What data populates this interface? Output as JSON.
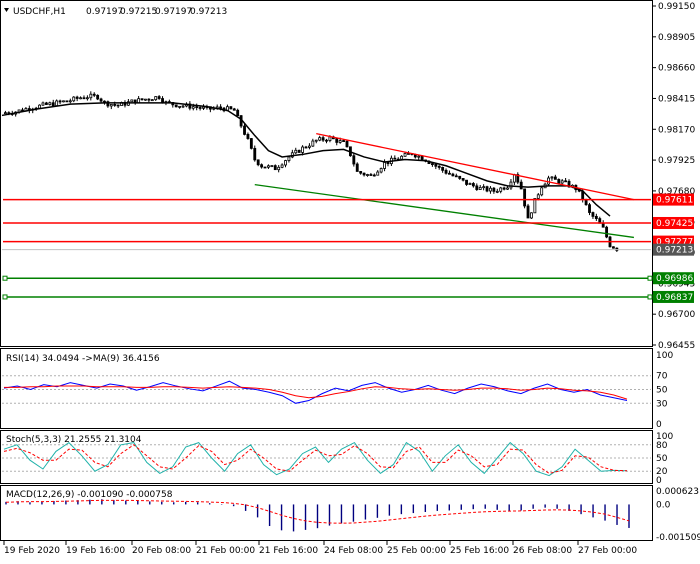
{
  "symbol_header": "USDCHF,H1",
  "ohlc_header": [
    "0.97197",
    "0.97215",
    "0.97197",
    "0.97213"
  ],
  "colors": {
    "resistance": "#ff0000",
    "support": "#008000",
    "ma_line": "#000000",
    "rsi_line": "#0000ff",
    "rsi_ma": "#ff0000",
    "stoch_main": "#20b2aa",
    "stoch_signal": "#ff0000",
    "macd_hist": "#000080",
    "macd_signal": "#ff0000",
    "current_price_tag": "#555555"
  },
  "chart_data": [
    {
      "type": "candlestick",
      "title": "USDCHF,H1",
      "y_ticks": [
        "0.99150",
        "0.98905",
        "0.98660",
        "0.98415",
        "0.98170",
        "0.97925",
        "0.97680",
        "0.97435",
        "0.97190",
        "0.96945",
        "0.96700",
        "0.96455"
      ],
      "ylim": [
        0.96455,
        0.9915
      ],
      "x_ticks": [
        "19 Feb 2020",
        "19 Feb 16:00",
        "20 Feb 08:00",
        "21 Feb 00:00",
        "21 Feb 16:00",
        "24 Feb 08:00",
        "25 Feb 00:00",
        "25 Feb 16:00",
        "26 Feb 08:00",
        "27 Feb 00:00"
      ],
      "close_path": [
        [
          0,
          0.983
        ],
        [
          4,
          0.9831
        ],
        [
          8,
          0.9834
        ],
        [
          12,
          0.9836
        ],
        [
          16,
          0.9838
        ],
        [
          20,
          0.984
        ],
        [
          24,
          0.9843
        ],
        [
          28,
          0.9843
        ],
        [
          30,
          0.9838
        ],
        [
          34,
          0.9836
        ],
        [
          38,
          0.9839
        ],
        [
          42,
          0.9841
        ],
        [
          46,
          0.9843
        ],
        [
          48,
          0.9838
        ],
        [
          52,
          0.9836
        ],
        [
          56,
          0.9835
        ],
        [
          60,
          0.9833
        ],
        [
          64,
          0.9834
        ],
        [
          68,
          0.9832
        ],
        [
          70,
          0.982
        ],
        [
          72,
          0.9808
        ],
        [
          74,
          0.9793
        ],
        [
          76,
          0.9788
        ],
        [
          80,
          0.9786
        ],
        [
          84,
          0.9795
        ],
        [
          88,
          0.9802
        ],
        [
          92,
          0.9808
        ],
        [
          96,
          0.981
        ],
        [
          100,
          0.9806
        ],
        [
          102,
          0.9797
        ],
        [
          104,
          0.9783
        ],
        [
          108,
          0.978
        ],
        [
          112,
          0.979
        ],
        [
          116,
          0.9794
        ],
        [
          120,
          0.9798
        ],
        [
          124,
          0.9793
        ],
        [
          128,
          0.9786
        ],
        [
          132,
          0.978
        ],
        [
          136,
          0.9774
        ],
        [
          140,
          0.977
        ],
        [
          144,
          0.9768
        ],
        [
          148,
          0.9772
        ],
        [
          150,
          0.9782
        ],
        [
          152,
          0.977
        ],
        [
          154,
          0.9745
        ],
        [
          156,
          0.976
        ],
        [
          158,
          0.9772
        ],
        [
          160,
          0.9778
        ],
        [
          164,
          0.9775
        ],
        [
          168,
          0.977
        ],
        [
          170,
          0.9762
        ],
        [
          172,
          0.975
        ],
        [
          174,
          0.9745
        ],
        [
          176,
          0.9738
        ],
        [
          178,
          0.9725
        ],
        [
          180,
          0.9722
        ]
      ],
      "ma_path": [
        [
          0,
          0.9828
        ],
        [
          10,
          0.9833
        ],
        [
          20,
          0.9837
        ],
        [
          30,
          0.9838
        ],
        [
          40,
          0.9838
        ],
        [
          50,
          0.9838
        ],
        [
          60,
          0.9835
        ],
        [
          66,
          0.9832
        ],
        [
          70,
          0.9825
        ],
        [
          74,
          0.9812
        ],
        [
          78,
          0.98
        ],
        [
          82,
          0.9795
        ],
        [
          88,
          0.9797
        ],
        [
          94,
          0.98
        ],
        [
          100,
          0.9801
        ],
        [
          106,
          0.9795
        ],
        [
          112,
          0.9791
        ],
        [
          118,
          0.9793
        ],
        [
          124,
          0.9792
        ],
        [
          130,
          0.9788
        ],
        [
          136,
          0.9782
        ],
        [
          142,
          0.9776
        ],
        [
          148,
          0.9772
        ],
        [
          154,
          0.9771
        ],
        [
          160,
          0.9772
        ],
        [
          166,
          0.9772
        ],
        [
          170,
          0.9768
        ],
        [
          174,
          0.9757
        ],
        [
          178,
          0.9748
        ]
      ],
      "price_lines": [
        {
          "label": "0.97611",
          "value": 0.97611,
          "role": "resistance"
        },
        {
          "label": "0.97425",
          "value": 0.97425,
          "role": "resistance"
        },
        {
          "label": "0.97277",
          "value": 0.97277,
          "role": "resistance"
        },
        {
          "label": "0.96986",
          "value": 0.96986,
          "role": "support"
        },
        {
          "label": "0.96837",
          "value": 0.96837,
          "role": "support"
        }
      ],
      "current_price": {
        "label": "0.97213",
        "value": 0.97213
      },
      "trendlines": [
        {
          "role": "resistance",
          "from": [
            92,
            0.98135
          ],
          "to": [
            185,
            0.97611
          ]
        },
        {
          "role": "support",
          "from": [
            74,
            0.9773
          ],
          "to": [
            185,
            0.9731
          ]
        }
      ]
    },
    {
      "type": "line",
      "title": "RSI(14) 34.0494 ->MA(9) 36.4156",
      "y_ticks": [
        "100",
        "70",
        "50",
        "30",
        "0"
      ],
      "ylim": [
        0,
        100
      ],
      "series": [
        {
          "role": "rsi",
          "values": [
            52,
            55,
            50,
            57,
            54,
            60,
            56,
            52,
            58,
            55,
            49,
            54,
            60,
            55,
            51,
            48,
            55,
            62,
            52,
            50,
            46,
            41,
            30,
            34,
            44,
            52,
            48,
            56,
            60,
            52,
            46,
            50,
            56,
            49,
            44,
            52,
            58,
            54,
            48,
            44,
            52,
            58,
            50,
            46,
            50,
            42,
            38,
            34
          ]
        },
        {
          "role": "rsi_ma",
          "values": [
            53,
            53,
            54,
            54,
            55,
            55,
            55,
            54,
            54,
            54,
            53,
            53,
            54,
            54,
            53,
            52,
            53,
            54,
            53,
            52,
            50,
            46,
            41,
            38,
            40,
            44,
            47,
            51,
            54,
            53,
            51,
            50,
            51,
            50,
            49,
            50,
            52,
            52,
            51,
            49,
            50,
            52,
            51,
            49,
            48,
            46,
            42,
            36
          ]
        }
      ]
    },
    {
      "type": "line",
      "title": "Stoch(5,3,3) 21.2555 21.3104",
      "y_ticks": [
        "100",
        "80",
        "50",
        "20",
        "0"
      ],
      "ylim": [
        0,
        100
      ],
      "series": [
        {
          "role": "stoch_main",
          "values": [
            70,
            80,
            45,
            25,
            65,
            85,
            55,
            20,
            35,
            80,
            85,
            40,
            15,
            30,
            75,
            85,
            50,
            20,
            60,
            80,
            35,
            12,
            25,
            60,
            75,
            40,
            70,
            85,
            45,
            15,
            35,
            85,
            65,
            20,
            55,
            80,
            40,
            15,
            50,
            85,
            60,
            20,
            10,
            30,
            70,
            45,
            20,
            22,
            21
          ]
        },
        {
          "role": "stoch_signal",
          "values": [
            65,
            72,
            62,
            45,
            45,
            70,
            68,
            40,
            30,
            60,
            80,
            55,
            30,
            25,
            50,
            78,
            65,
            35,
            45,
            70,
            50,
            25,
            20,
            45,
            68,
            55,
            58,
            78,
            60,
            30,
            28,
            65,
            75,
            40,
            40,
            68,
            55,
            30,
            35,
            70,
            68,
            35,
            15,
            22,
            55,
            52,
            30,
            22,
            21
          ]
        }
      ]
    },
    {
      "type": "bar",
      "title": "MACD(12,26,9) -0.001090 -0.000758",
      "y_ticks": [
        "0.000623",
        "0.0",
        "-0.001509"
      ],
      "ylim": [
        -0.001509,
        0.000623
      ],
      "histogram": [
        0.00012,
        0.00015,
        0.0001,
        0.00012,
        0.00016,
        0.00018,
        0.0002,
        0.00022,
        0.00024,
        0.0002,
        0.00018,
        0.00016,
        0.00014,
        0.00012,
        0.0001,
        0.00012,
        0.0001,
        6e-05,
        2e-05,
        -8e-05,
        -0.0003,
        -0.0006,
        -0.001,
        -0.0012,
        -0.00125,
        -0.00118,
        -0.0011,
        -0.00098,
        -0.00088,
        -0.0008,
        -0.0007,
        -0.00062,
        -0.00052,
        -0.00045,
        -0.0004,
        -0.00035,
        -0.0003,
        -0.00028,
        -0.00025,
        -0.00022,
        -0.0002,
        -0.00025,
        -0.0003,
        -0.00028,
        -0.0002,
        -0.00015,
        -0.0002,
        -0.0003,
        -0.00045,
        -0.0006,
        -0.00075,
        -0.00095,
        -0.00109
      ],
      "signal": [
        0.0001,
        0.00012,
        0.00013,
        0.00013,
        0.00014,
        0.00015,
        0.00016,
        0.00018,
        0.00019,
        0.00019,
        0.00019,
        0.00018,
        0.00017,
        0.00016,
        0.00015,
        0.00014,
        0.00013,
        0.00011,
        9e-05,
        5e-05,
        -2e-05,
        -0.00015,
        -0.00032,
        -0.0005,
        -0.00065,
        -0.00076,
        -0.00083,
        -0.00086,
        -0.00087,
        -0.00086,
        -0.00082,
        -0.00078,
        -0.00072,
        -0.00066,
        -0.0006,
        -0.00054,
        -0.00049,
        -0.00045,
        -0.00041,
        -0.00037,
        -0.00034,
        -0.00032,
        -0.00031,
        -0.0003,
        -0.00028,
        -0.00026,
        -0.00025,
        -0.00026,
        -0.0003,
        -0.00036,
        -0.00045,
        -0.0006,
        -0.00076
      ]
    }
  ]
}
